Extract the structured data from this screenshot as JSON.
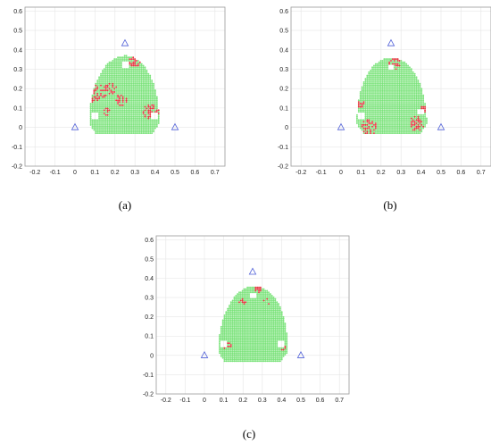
{
  "colors": {
    "ok": "#7be37b",
    "fail": "#e5323c",
    "anchor": "#4f5fd8",
    "hole": "#ffffff"
  },
  "chart_data": [
    {
      "type": "scatter",
      "label": "(a)",
      "xlim": [
        -0.25,
        0.75
      ],
      "ylim": [
        -0.2,
        0.62
      ],
      "xticks": [
        "-0.2",
        "-0.1",
        "0",
        "0.1",
        "0.2",
        "0.3",
        "0.4",
        "0.5",
        "0.6",
        "0.7"
      ],
      "yticks": [
        "-0.2",
        "-0.1",
        "0",
        "0.1",
        "0.2",
        "0.3",
        "0.4",
        "0.5",
        "0.6"
      ],
      "grid": true,
      "anchors": [
        [
          0,
          0
        ],
        [
          0.5,
          0
        ],
        [
          0.25,
          0.433
        ]
      ],
      "region": {
        "xmin": 0.07,
        "xmax": 0.42,
        "ymin": -0.03,
        "ymax": 0.37,
        "top_x": 0.25
      },
      "holes": [
        [
          0.1,
          0.06
        ],
        [
          0.4,
          0.06
        ],
        [
          0.25,
          0.32
        ]
      ],
      "red_clusters": [
        [
          0.3,
          0.34,
          0.03
        ],
        [
          0.12,
          0.18,
          0.04
        ],
        [
          0.18,
          0.2,
          0.03
        ],
        [
          0.23,
          0.14,
          0.03
        ],
        [
          0.38,
          0.08,
          0.04
        ],
        [
          0.16,
          0.08,
          0.02
        ],
        [
          0.1,
          0.14,
          0.02
        ]
      ]
    },
    {
      "type": "scatter",
      "label": "(b)",
      "xlim": [
        -0.25,
        0.75
      ],
      "ylim": [
        -0.2,
        0.62
      ],
      "xticks": [
        "-0.2",
        "-0.1",
        "0",
        "0.1",
        "0.2",
        "0.3",
        "0.4",
        "0.5",
        "0.6",
        "0.7"
      ],
      "yticks": [
        "-0.2",
        "-0.1",
        "0",
        "0.1",
        "0.2",
        "0.3",
        "0.4",
        "0.5",
        "0.6"
      ],
      "grid": true,
      "anchors": [
        [
          0,
          0
        ],
        [
          0.5,
          0
        ],
        [
          0.25,
          0.433
        ]
      ],
      "region": {
        "xmin": 0.08,
        "xmax": 0.43,
        "ymin": -0.03,
        "ymax": 0.36,
        "top_x": 0.25
      },
      "holes": [
        [
          0.1,
          0.06
        ],
        [
          0.4,
          0.08
        ],
        [
          0.25,
          0.31
        ]
      ],
      "red_clusters": [
        [
          0.27,
          0.33,
          0.03
        ],
        [
          0.38,
          0.02,
          0.04
        ],
        [
          0.14,
          0.0,
          0.04
        ],
        [
          0.1,
          0.12,
          0.02
        ],
        [
          0.42,
          0.1,
          0.02
        ]
      ]
    },
    {
      "type": "scatter",
      "label": "(c)",
      "xlim": [
        -0.25,
        0.75
      ],
      "ylim": [
        -0.2,
        0.62
      ],
      "xticks": [
        "-0.2",
        "-0.1",
        "0",
        "0.1",
        "0.2",
        "0.3",
        "0.4",
        "0.5",
        "0.6",
        "0.7"
      ],
      "yticks": [
        "-0.2",
        "-0.1",
        "0",
        "0.1",
        "0.2",
        "0.3",
        "0.4",
        "0.5",
        "0.6"
      ],
      "grid": true,
      "anchors": [
        [
          0,
          0
        ],
        [
          0.5,
          0
        ],
        [
          0.25,
          0.433
        ]
      ],
      "region": {
        "xmin": 0.07,
        "xmax": 0.43,
        "ymin": -0.03,
        "ymax": 0.36,
        "top_x": 0.26
      },
      "holes": [
        [
          0.1,
          0.06
        ],
        [
          0.4,
          0.06
        ],
        [
          0.25,
          0.31
        ]
      ],
      "red_clusters": [
        [
          0.28,
          0.34,
          0.02
        ],
        [
          0.32,
          0.28,
          0.02
        ],
        [
          0.2,
          0.28,
          0.02
        ],
        [
          0.4,
          0.04,
          0.02
        ],
        [
          0.12,
          0.05,
          0.02
        ]
      ]
    }
  ]
}
